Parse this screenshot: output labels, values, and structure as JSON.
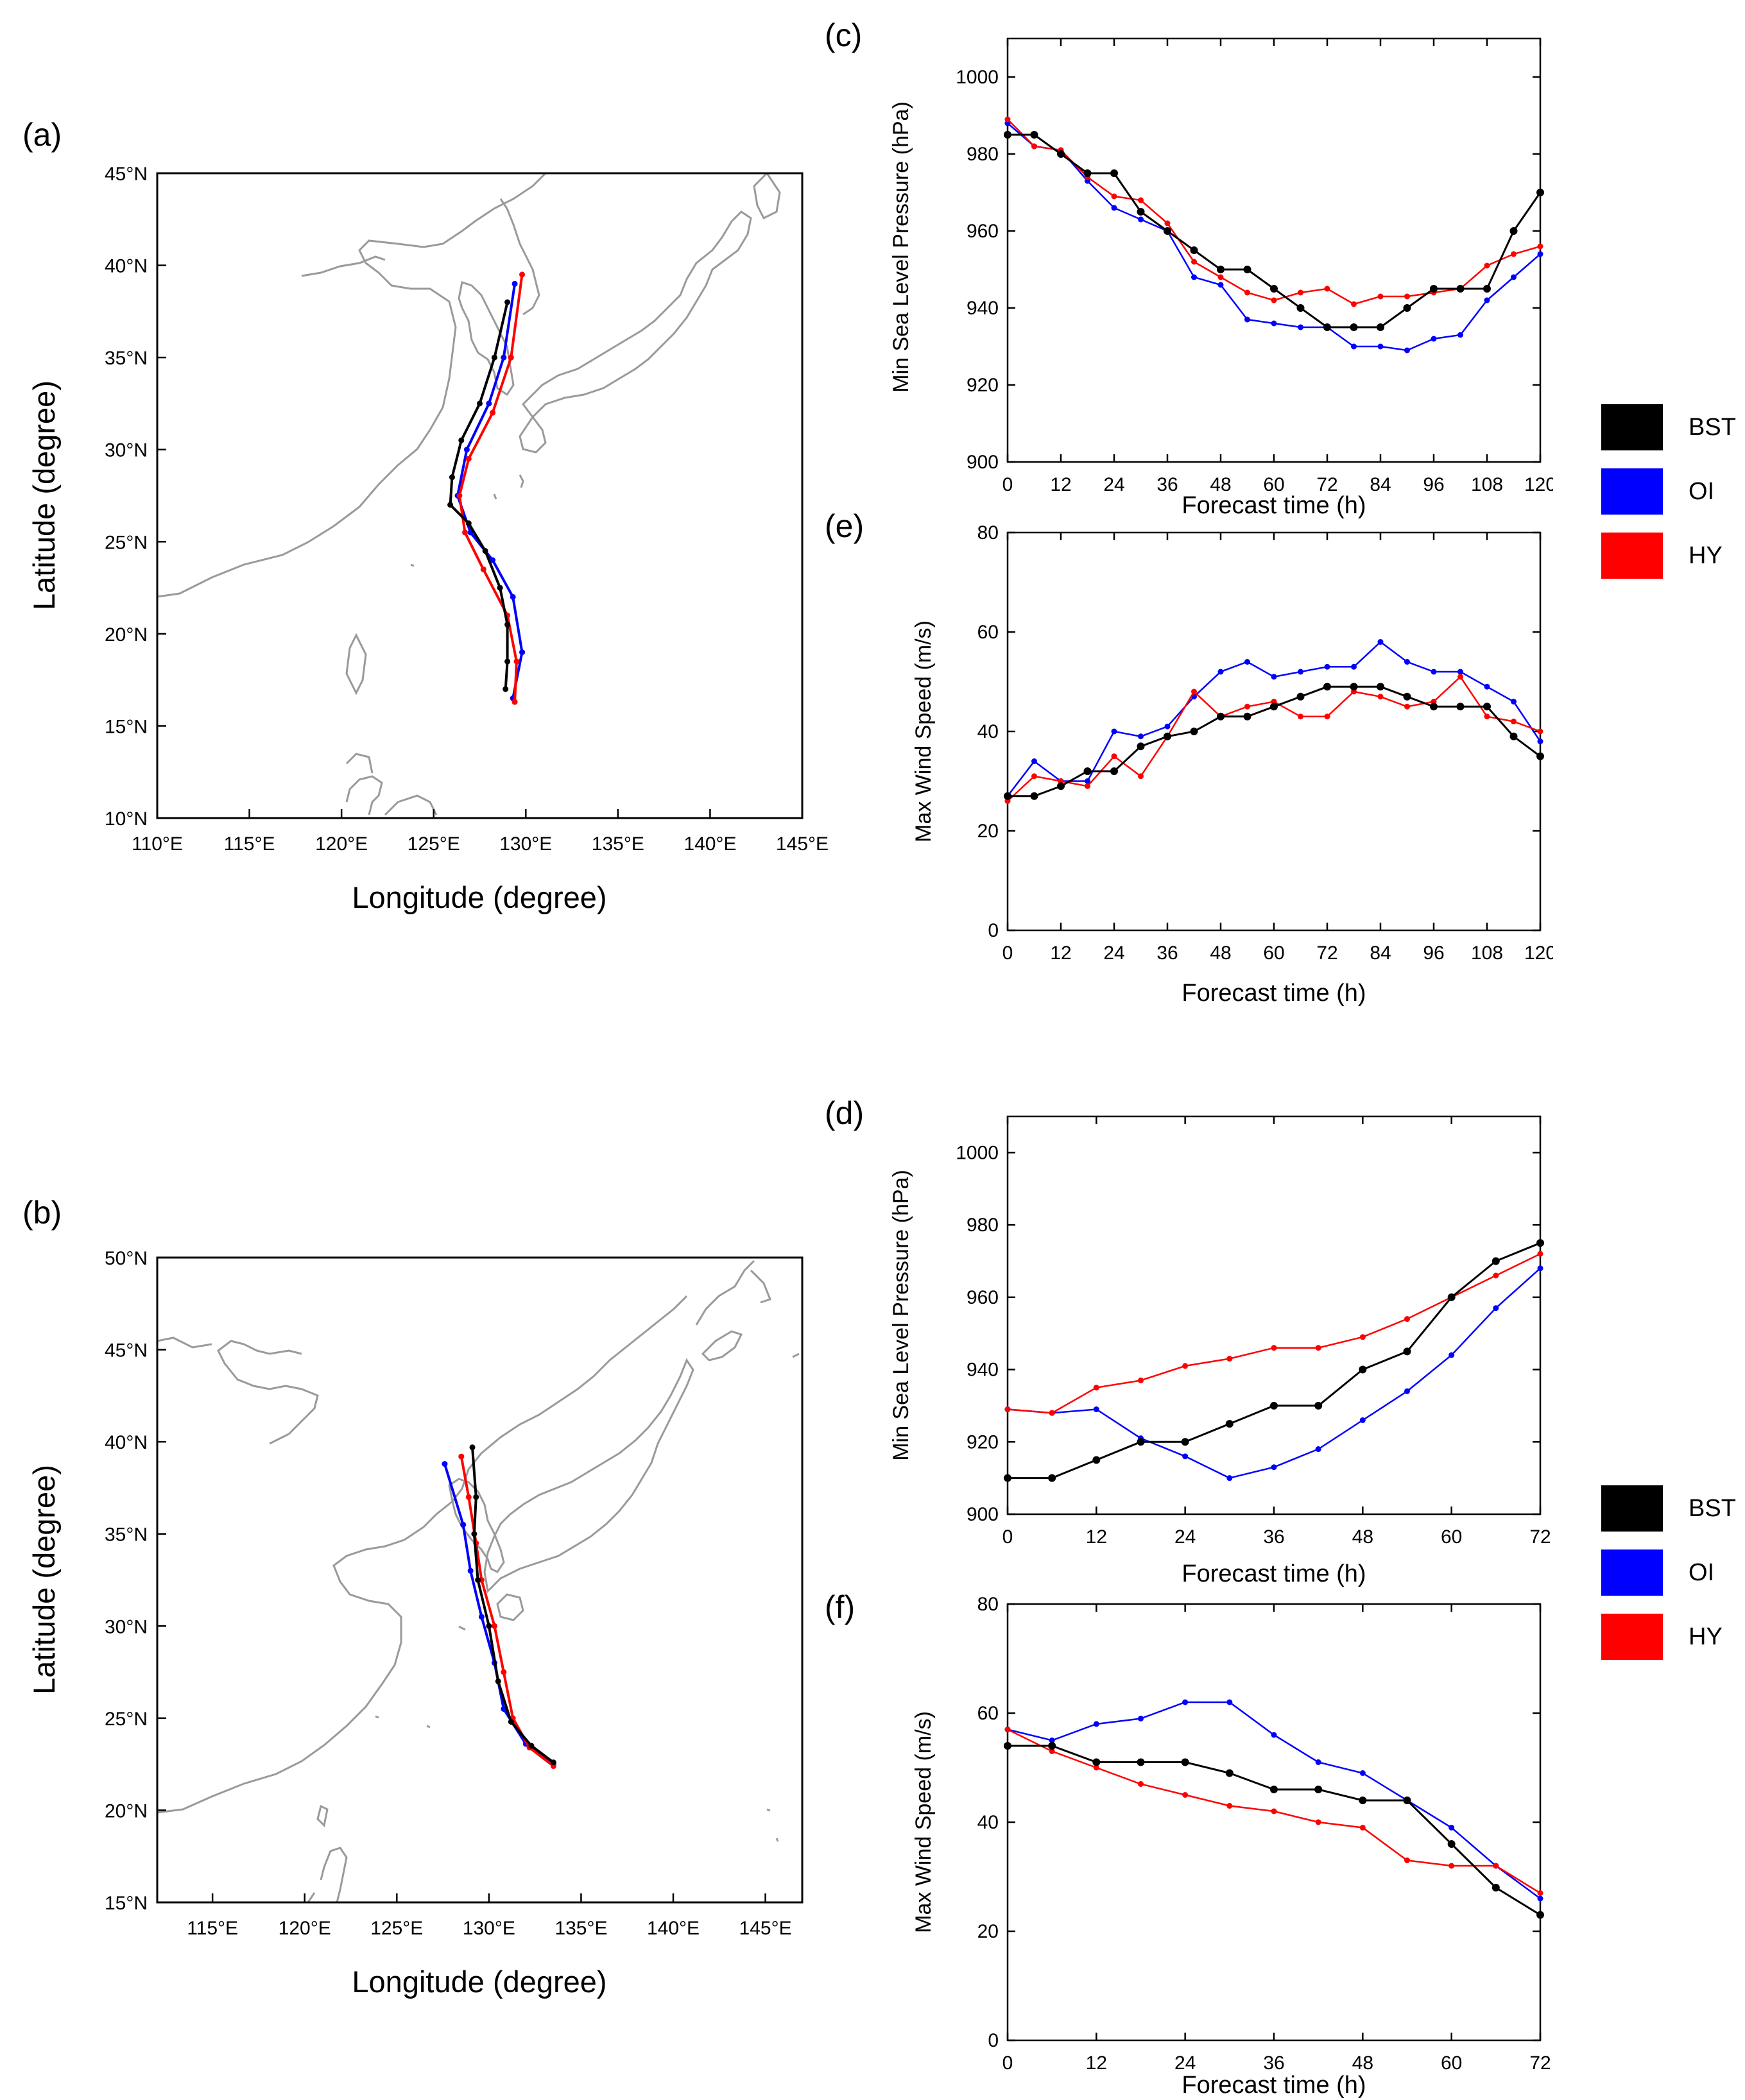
{
  "panels": {
    "a": {
      "label": "(a)",
      "xlabel": "Longitude (degree)",
      "ylabel": "Latitude (degree)",
      "lon_range": [
        110,
        145
      ],
      "lat_range": [
        10,
        45
      ],
      "xticks": [
        "110°E",
        "115°E",
        "120°E",
        "125°E",
        "130°E",
        "135°E",
        "140°E",
        "145°E"
      ],
      "xtick_values": [
        110,
        115,
        120,
        125,
        130,
        135,
        140,
        145
      ],
      "yticks": [
        "10°N",
        "15°N",
        "20°N",
        "25°N",
        "30°N",
        "35°N",
        "40°N",
        "45°N"
      ],
      "ytick_values": [
        10,
        15,
        20,
        25,
        30,
        35,
        40,
        45
      ],
      "tracks": {
        "BST": [
          [
            128.9,
            17
          ],
          [
            129,
            18.5
          ],
          [
            129,
            20.5
          ],
          [
            128.6,
            22.5
          ],
          [
            127.8,
            24.5
          ],
          [
            126.9,
            26
          ],
          [
            125.9,
            27
          ],
          [
            126,
            28.5
          ],
          [
            126.5,
            30.5
          ],
          [
            127.5,
            32.5
          ],
          [
            128.3,
            35
          ],
          [
            129,
            38
          ]
        ],
        "OI": [
          [
            129.3,
            16.5
          ],
          [
            129.8,
            19
          ],
          [
            129.3,
            22
          ],
          [
            128.2,
            24
          ],
          [
            127,
            25.5
          ],
          [
            126.3,
            27.5
          ],
          [
            126.8,
            30
          ],
          [
            128,
            32.5
          ],
          [
            128.8,
            35
          ],
          [
            129.4,
            39
          ]
        ],
        "HY": [
          [
            129.4,
            16.3
          ],
          [
            129.5,
            18.5
          ],
          [
            129,
            21
          ],
          [
            127.7,
            23.5
          ],
          [
            126.7,
            25.5
          ],
          [
            126.4,
            27.5
          ],
          [
            126.9,
            29.5
          ],
          [
            128.2,
            32
          ],
          [
            129.2,
            35
          ],
          [
            129.8,
            39.5
          ]
        ]
      }
    },
    "b": {
      "label": "(b)",
      "xlabel": "Longitude (degree)",
      "ylabel": "Latitude (degree)",
      "lon_range": [
        112,
        147
      ],
      "lat_range": [
        15,
        50
      ],
      "xticks": [
        "115°E",
        "120°E",
        "125°E",
        "130°E",
        "135°E",
        "140°E",
        "145°E"
      ],
      "xtick_values": [
        115,
        120,
        125,
        130,
        135,
        140,
        145
      ],
      "yticks": [
        "15°N",
        "20°N",
        "25°N",
        "30°N",
        "35°N",
        "40°N",
        "45°N",
        "50°N"
      ],
      "ytick_values": [
        15,
        20,
        25,
        30,
        35,
        40,
        45,
        50
      ],
      "tracks": {
        "BST": [
          [
            133.5,
            22.6
          ],
          [
            132.3,
            23.5
          ],
          [
            131.2,
            24.8
          ],
          [
            130.5,
            27
          ],
          [
            130,
            30
          ],
          [
            129.4,
            32.5
          ],
          [
            129.2,
            35
          ],
          [
            129.3,
            37
          ],
          [
            129.1,
            39.7
          ]
        ],
        "OI": [
          [
            133.5,
            22.5
          ],
          [
            132,
            23.6
          ],
          [
            130.8,
            25.5
          ],
          [
            130.3,
            28
          ],
          [
            129.6,
            30.5
          ],
          [
            129,
            33
          ],
          [
            128.6,
            35.5
          ],
          [
            127.6,
            38.8
          ]
        ],
        "HY": [
          [
            133.5,
            22.4
          ],
          [
            132.2,
            23.4
          ],
          [
            131.3,
            25
          ],
          [
            130.8,
            27.5
          ],
          [
            130.3,
            30
          ],
          [
            129.6,
            32.5
          ],
          [
            129.3,
            34.5
          ],
          [
            128.9,
            37
          ],
          [
            128.5,
            39.2
          ]
        ]
      }
    },
    "c": {
      "label": "(c)",
      "type": "line",
      "xlabel": "Forecast time (h)",
      "ylabel": "Min Sea Level Pressure (hPa)",
      "xlim": [
        0,
        120
      ],
      "ylim": [
        900,
        1010
      ],
      "xticks": [
        "0",
        "12",
        "24",
        "36",
        "48",
        "60",
        "72",
        "84",
        "96",
        "108",
        "120"
      ],
      "xtick_values": [
        0,
        12,
        24,
        36,
        48,
        60,
        72,
        84,
        96,
        108,
        120
      ],
      "yticks": [
        "900",
        "920",
        "940",
        "960",
        "980",
        "1000"
      ],
      "ytick_values": [
        900,
        920,
        940,
        960,
        980,
        1000
      ],
      "x": [
        0,
        6,
        12,
        18,
        24,
        30,
        36,
        42,
        48,
        54,
        60,
        66,
        72,
        78,
        84,
        90,
        96,
        102,
        108,
        114,
        120
      ],
      "series": [
        {
          "name": "BST",
          "values": [
            985,
            985,
            980,
            975,
            975,
            965,
            960,
            955,
            950,
            950,
            945,
            940,
            935,
            935,
            935,
            940,
            945,
            945,
            945,
            960,
            970
          ]
        },
        {
          "name": "OI",
          "values": [
            988,
            982,
            981,
            973,
            966,
            963,
            960,
            948,
            946,
            937,
            936,
            935,
            935,
            930,
            930,
            929,
            932,
            933,
            942,
            948,
            954
          ]
        },
        {
          "name": "HY",
          "values": [
            989,
            982,
            981,
            974,
            969,
            968,
            962,
            952,
            948,
            944,
            942,
            944,
            945,
            941,
            943,
            943,
            944,
            945,
            951,
            954,
            956
          ]
        }
      ]
    },
    "e": {
      "label": "(e)",
      "type": "line",
      "xlabel": "Forecast time (h)",
      "ylabel": "Max Wind Speed (m/s)",
      "xlim": [
        0,
        120
      ],
      "ylim": [
        0,
        80
      ],
      "xticks": [
        "0",
        "12",
        "24",
        "36",
        "48",
        "60",
        "72",
        "84",
        "96",
        "108",
        "120"
      ],
      "xtick_values": [
        0,
        12,
        24,
        36,
        48,
        60,
        72,
        84,
        96,
        108,
        120
      ],
      "yticks": [
        "0",
        "20",
        "40",
        "60",
        "80"
      ],
      "ytick_values": [
        0,
        20,
        40,
        60,
        80
      ],
      "x": [
        0,
        6,
        12,
        18,
        24,
        30,
        36,
        42,
        48,
        54,
        60,
        66,
        72,
        78,
        84,
        90,
        96,
        102,
        108,
        114,
        120
      ],
      "series": [
        {
          "name": "BST",
          "values": [
            27,
            27,
            29,
            32,
            32,
            37,
            39,
            40,
            43,
            43,
            45,
            47,
            49,
            49,
            49,
            47,
            45,
            45,
            45,
            39,
            35
          ]
        },
        {
          "name": "OI",
          "values": [
            27,
            34,
            30,
            30,
            40,
            39,
            41,
            47,
            52,
            54,
            51,
            52,
            53,
            53,
            58,
            54,
            52,
            52,
            49,
            46,
            38
          ]
        },
        {
          "name": "HY",
          "values": [
            26,
            31,
            30,
            29,
            35,
            31,
            39,
            48,
            43,
            45,
            46,
            43,
            43,
            48,
            47,
            45,
            46,
            51,
            43,
            42,
            40
          ]
        }
      ]
    },
    "d": {
      "label": "(d)",
      "type": "line",
      "xlabel": "Forecast time (h)",
      "ylabel": "Min Sea Level Pressure (hPa)",
      "xlim": [
        0,
        72
      ],
      "ylim": [
        900,
        1010
      ],
      "xticks": [
        "0",
        "12",
        "24",
        "36",
        "48",
        "60",
        "72"
      ],
      "xtick_values": [
        0,
        12,
        24,
        36,
        48,
        60,
        72
      ],
      "yticks": [
        "900",
        "920",
        "940",
        "960",
        "980",
        "1000"
      ],
      "ytick_values": [
        900,
        920,
        940,
        960,
        980,
        1000
      ],
      "x": [
        0,
        6,
        12,
        18,
        24,
        30,
        36,
        42,
        48,
        54,
        60,
        66,
        72
      ],
      "series": [
        {
          "name": "BST",
          "values": [
            910,
            910,
            915,
            920,
            920,
            925,
            930,
            930,
            940,
            945,
            960,
            970,
            975
          ]
        },
        {
          "name": "OI",
          "values": [
            929,
            928,
            929,
            921,
            916,
            910,
            913,
            918,
            926,
            934,
            944,
            957,
            968
          ]
        },
        {
          "name": "HY",
          "values": [
            929,
            928,
            935,
            937,
            941,
            943,
            946,
            946,
            949,
            954,
            960,
            966,
            972
          ]
        }
      ]
    },
    "f": {
      "label": "(f)",
      "type": "line",
      "xlabel": "Forecast time (h)",
      "ylabel": "Max Wind Speed (m/s)",
      "xlim": [
        0,
        72
      ],
      "ylim": [
        0,
        80
      ],
      "xticks": [
        "0",
        "12",
        "24",
        "36",
        "48",
        "60",
        "72"
      ],
      "xtick_values": [
        0,
        12,
        24,
        36,
        48,
        60,
        72
      ],
      "yticks": [
        "0",
        "20",
        "40",
        "60",
        "80"
      ],
      "ytick_values": [
        0,
        20,
        40,
        60,
        80
      ],
      "x": [
        0,
        6,
        12,
        18,
        24,
        30,
        36,
        42,
        48,
        54,
        60,
        66,
        72
      ],
      "series": [
        {
          "name": "BST",
          "values": [
            54,
            54,
            51,
            51,
            51,
            49,
            46,
            46,
            44,
            44,
            36,
            28,
            23
          ]
        },
        {
          "name": "OI",
          "values": [
            57,
            55,
            58,
            59,
            62,
            62,
            56,
            51,
            49,
            44,
            39,
            32,
            26
          ]
        },
        {
          "name": "HY",
          "values": [
            57,
            53,
            50,
            47,
            45,
            43,
            42,
            40,
            39,
            33,
            32,
            32,
            27
          ]
        }
      ]
    }
  },
  "legend": [
    {
      "label": "BST",
      "color": "#000000"
    },
    {
      "label": "OI",
      "color": "#0000ff"
    },
    {
      "label": "HY",
      "color": "#ff0000"
    }
  ],
  "chart_data": [
    {
      "type": "line",
      "title": "(c)",
      "xlabel": "Forecast time (h)",
      "ylabel": "Min Sea Level Pressure (hPa)",
      "ylim": [
        900,
        1010
      ],
      "x": [
        0,
        6,
        12,
        18,
        24,
        30,
        36,
        42,
        48,
        54,
        60,
        66,
        72,
        78,
        84,
        90,
        96,
        102,
        108,
        114,
        120
      ],
      "series": [
        {
          "name": "BST",
          "values": [
            985,
            985,
            980,
            975,
            975,
            965,
            960,
            955,
            950,
            950,
            945,
            940,
            935,
            935,
            935,
            940,
            945,
            945,
            945,
            960,
            970
          ]
        },
        {
          "name": "OI",
          "values": [
            988,
            982,
            981,
            973,
            966,
            963,
            960,
            948,
            946,
            937,
            936,
            935,
            935,
            930,
            930,
            929,
            932,
            933,
            942,
            948,
            954
          ]
        },
        {
          "name": "HY",
          "values": [
            989,
            982,
            981,
            974,
            969,
            968,
            962,
            952,
            948,
            944,
            942,
            944,
            945,
            941,
            943,
            943,
            944,
            945,
            951,
            954,
            956
          ]
        }
      ]
    },
    {
      "type": "line",
      "title": "(e)",
      "xlabel": "Forecast time (h)",
      "ylabel": "Max Wind Speed (m/s)",
      "ylim": [
        0,
        80
      ],
      "x": [
        0,
        6,
        12,
        18,
        24,
        30,
        36,
        42,
        48,
        54,
        60,
        66,
        72,
        78,
        84,
        90,
        96,
        102,
        108,
        114,
        120
      ],
      "series": [
        {
          "name": "BST",
          "values": [
            27,
            27,
            29,
            32,
            32,
            37,
            39,
            40,
            43,
            43,
            45,
            47,
            49,
            49,
            49,
            47,
            45,
            45,
            45,
            39,
            35
          ]
        },
        {
          "name": "OI",
          "values": [
            27,
            34,
            30,
            30,
            40,
            39,
            41,
            47,
            52,
            54,
            51,
            52,
            53,
            53,
            58,
            54,
            52,
            52,
            49,
            46,
            38
          ]
        },
        {
          "name": "HY",
          "values": [
            26,
            31,
            30,
            29,
            35,
            31,
            39,
            48,
            43,
            45,
            46,
            43,
            43,
            48,
            47,
            45,
            46,
            51,
            43,
            42,
            40
          ]
        }
      ]
    },
    {
      "type": "line",
      "title": "(d)",
      "xlabel": "Forecast time (h)",
      "ylabel": "Min Sea Level Pressure (hPa)",
      "ylim": [
        900,
        1010
      ],
      "x": [
        0,
        6,
        12,
        18,
        24,
        30,
        36,
        42,
        48,
        54,
        60,
        66,
        72
      ],
      "series": [
        {
          "name": "BST",
          "values": [
            910,
            910,
            915,
            920,
            920,
            925,
            930,
            930,
            940,
            945,
            960,
            970,
            975
          ]
        },
        {
          "name": "OI",
          "values": [
            929,
            928,
            929,
            921,
            916,
            910,
            913,
            918,
            926,
            934,
            944,
            957,
            968
          ]
        },
        {
          "name": "HY",
          "values": [
            929,
            928,
            935,
            937,
            941,
            943,
            946,
            946,
            949,
            954,
            960,
            966,
            972
          ]
        }
      ]
    },
    {
      "type": "line",
      "title": "(f)",
      "xlabel": "Forecast time (h)",
      "ylabel": "Max Wind Speed (m/s)",
      "ylim": [
        0,
        80
      ],
      "x": [
        0,
        6,
        12,
        18,
        24,
        30,
        36,
        42,
        48,
        54,
        60,
        66,
        72
      ],
      "series": [
        {
          "name": "BST",
          "values": [
            54,
            54,
            51,
            51,
            51,
            49,
            46,
            46,
            44,
            44,
            36,
            28,
            23
          ]
        },
        {
          "name": "OI",
          "values": [
            57,
            55,
            58,
            59,
            62,
            62,
            56,
            51,
            49,
            44,
            39,
            32,
            26
          ]
        },
        {
          "name": "HY",
          "values": [
            57,
            53,
            50,
            47,
            45,
            43,
            42,
            40,
            39,
            33,
            32,
            32,
            27
          ]
        }
      ]
    }
  ]
}
